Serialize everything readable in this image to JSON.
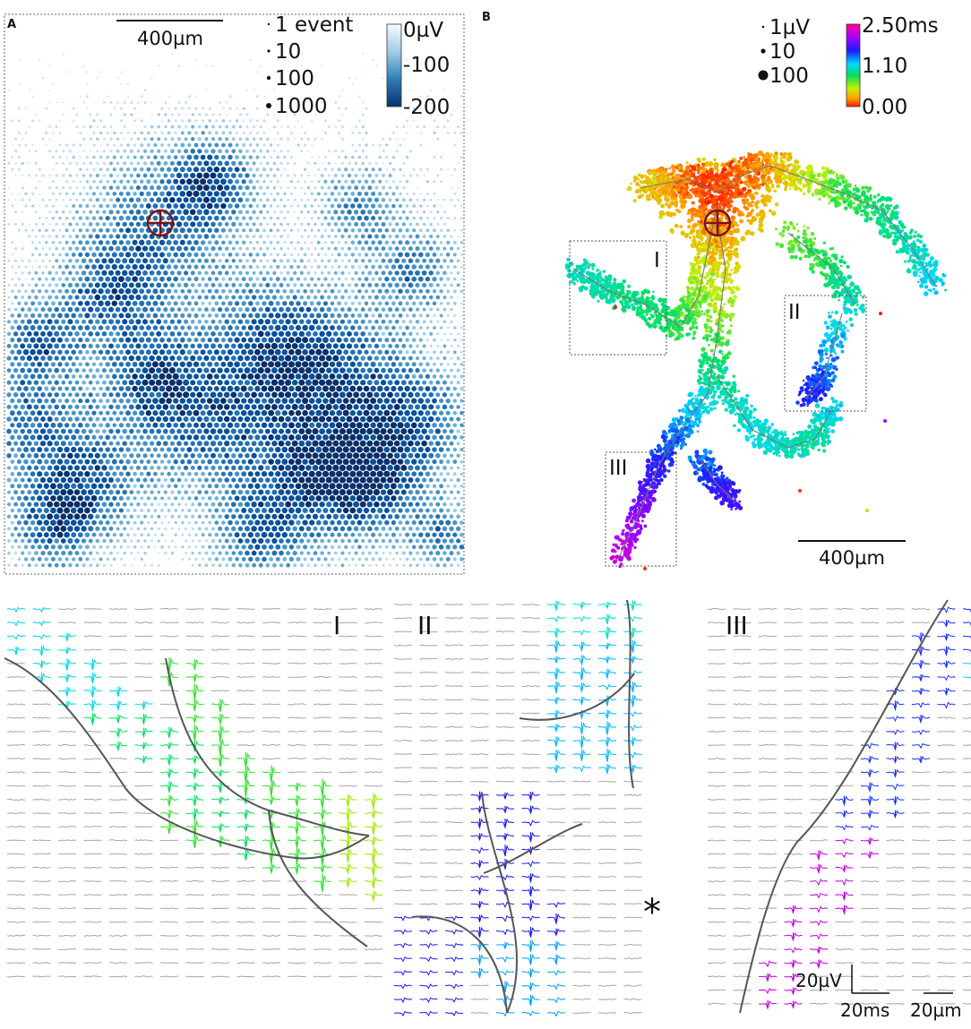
{
  "panel_a": {
    "letter": "A",
    "scale_bar_label": "400µm",
    "size_legend": [
      "1 event",
      "10",
      "100",
      "1000"
    ],
    "colorbar": {
      "ticks": [
        "0µV",
        "-100",
        "-200"
      ],
      "range": [
        0,
        -200
      ],
      "colors": [
        "#f4f7fb",
        "#08306b"
      ]
    }
  },
  "panel_b": {
    "letter": "B",
    "scale_bar_label": "400µm",
    "size_legend": [
      "1µV",
      "10",
      "100"
    ],
    "colorbar": {
      "ticks": [
        "2.50ms",
        "1.10",
        "0.00"
      ],
      "range": [
        0.0,
        2.5
      ]
    },
    "insets": [
      "I",
      "II",
      "III"
    ]
  },
  "bottom": {
    "titles": [
      "I",
      "II",
      "III"
    ],
    "asterisk": "*",
    "scale_voltage": "20µV",
    "scale_time": "20ms",
    "scale_space": "20µm"
  }
}
